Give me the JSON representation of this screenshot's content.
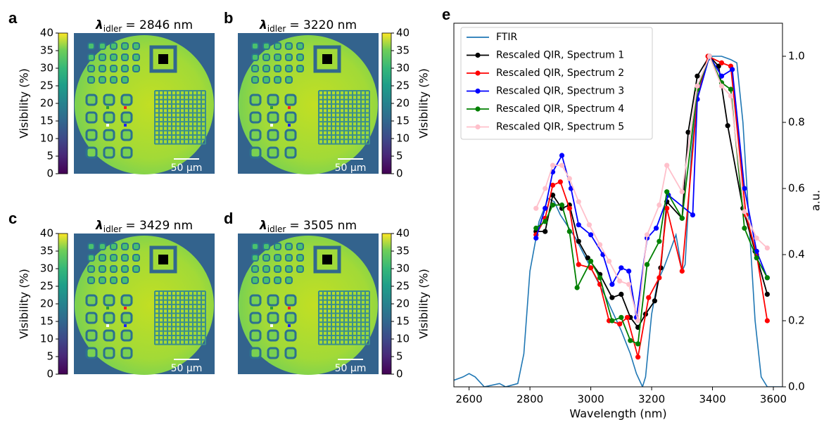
{
  "panels": [
    {
      "label": "a",
      "symbol": "λ",
      "subscript": "idler",
      "text": "= 2846 nm",
      "scalebar": "50 µm"
    },
    {
      "label": "b",
      "symbol": "λ",
      "subscript": "idler",
      "text": "= 3220 nm",
      "scalebar": "50 µm"
    },
    {
      "label": "c",
      "symbol": "λ",
      "subscript": "idler",
      "text": "= 3429 nm",
      "scalebar": "50 µm"
    },
    {
      "label": "d",
      "symbol": "λ",
      "subscript": "idler",
      "text": "= 3505 nm",
      "scalebar": "50 µm"
    }
  ],
  "colorbar": {
    "label": "Visibility (%)",
    "lim": [
      0,
      40
    ],
    "ticks": [
      0,
      5,
      10,
      15,
      20,
      25,
      30,
      35,
      40
    ]
  },
  "chart_data": {
    "type": "line",
    "panel_label": "e",
    "x_label": "Wavelength (nm)",
    "y_label": "a.u.",
    "xlim": [
      2550,
      3630
    ],
    "xticks": [
      2600,
      2800,
      3000,
      3200,
      3400,
      3600
    ],
    "ylim": [
      0,
      1.1
    ],
    "yticks": [
      {
        "value": 0,
        "label": "0.0"
      },
      0.2,
      0.4,
      0.6,
      0.8,
      {
        "value": 1,
        "label": "1.0"
      }
    ],
    "legend": "upper left",
    "series": [
      {
        "name": "FTIR",
        "color": "#1f77b4",
        "markers": false,
        "x": [
          2550,
          2580,
          2600,
          2620,
          2650,
          2700,
          2720,
          2760,
          2780,
          2800,
          2830,
          2860,
          2880,
          2900,
          2950,
          3000,
          3050,
          3100,
          3130,
          3150,
          3170,
          3180,
          3200,
          3220,
          3240,
          3260,
          3280,
          3300,
          3310,
          3330,
          3350,
          3380,
          3400,
          3430,
          3460,
          3480,
          3500,
          3520,
          3540,
          3560,
          3580,
          3630
        ],
        "values": [
          0.02,
          0.03,
          0.04,
          0.03,
          0.0,
          0.01,
          0.0,
          0.01,
          0.1,
          0.35,
          0.5,
          0.57,
          0.56,
          0.52,
          0.45,
          0.36,
          0.27,
          0.17,
          0.1,
          0.04,
          0.0,
          0.03,
          0.22,
          0.32,
          0.36,
          0.41,
          0.46,
          0.35,
          0.37,
          0.7,
          0.88,
          0.98,
          1.0,
          1.0,
          0.99,
          0.98,
          0.8,
          0.5,
          0.2,
          0.03,
          0.0,
          0.0
        ]
      },
      {
        "name": "Rescaled QIR, Spectrum 1",
        "color": "#000000",
        "markers": true,
        "x": [
          2820,
          2850,
          2875,
          2905,
          2930,
          2960,
          2990,
          3030,
          3070,
          3100,
          3130,
          3155,
          3180,
          3210,
          3230,
          3250,
          3300,
          3320,
          3350,
          3390,
          3420,
          3450,
          3500,
          3540,
          3580
        ],
        "values": [
          0.47,
          0.47,
          0.58,
          0.54,
          0.55,
          0.44,
          0.39,
          0.34,
          0.27,
          0.28,
          0.21,
          0.18,
          0.22,
          0.26,
          0.36,
          0.56,
          0.51,
          0.77,
          0.94,
          1.0,
          0.97,
          0.79,
          0.54,
          0.41,
          0.28
        ]
      },
      {
        "name": "Rescaled QIR, Spectrum 2",
        "color": "#ff0000",
        "markers": true,
        "x": [
          2820,
          2850,
          2875,
          2900,
          2930,
          2960,
          3000,
          3030,
          3060,
          3095,
          3120,
          3155,
          3190,
          3225,
          3250,
          3300,
          3350,
          3385,
          3430,
          3460,
          3510,
          3545,
          3580
        ],
        "values": [
          0.46,
          0.51,
          0.61,
          0.62,
          0.54,
          0.37,
          0.36,
          0.31,
          0.2,
          0.19,
          0.21,
          0.09,
          0.27,
          0.33,
          0.54,
          0.35,
          0.87,
          1.0,
          0.98,
          0.97,
          0.52,
          0.4,
          0.2
        ]
      },
      {
        "name": "Rescaled QIR, Spectrum 3",
        "color": "#0000ff",
        "markers": true,
        "x": [
          2820,
          2850,
          2875,
          2905,
          2935,
          2960,
          3000,
          3040,
          3070,
          3100,
          3125,
          3150,
          3185,
          3215,
          3255,
          3335,
          3350,
          3390,
          3430,
          3465,
          3505,
          3545,
          3580
        ],
        "values": [
          0.45,
          0.54,
          0.65,
          0.7,
          0.6,
          0.49,
          0.46,
          0.4,
          0.31,
          0.36,
          0.35,
          0.21,
          0.45,
          0.48,
          0.58,
          0.52,
          0.87,
          1.0,
          0.94,
          0.96,
          0.6,
          0.41,
          0.33
        ]
      },
      {
        "name": "Rescaled QIR, Spectrum 4",
        "color": "#008000",
        "markers": true,
        "x": [
          2820,
          2850,
          2875,
          2905,
          2930,
          2955,
          3000,
          3030,
          3070,
          3100,
          3130,
          3155,
          3185,
          3225,
          3250,
          3300,
          3350,
          3390,
          3430,
          3460,
          3505,
          3545,
          3580
        ],
        "values": [
          0.48,
          0.5,
          0.55,
          0.55,
          0.47,
          0.3,
          0.38,
          0.33,
          0.2,
          0.21,
          0.14,
          0.13,
          0.37,
          0.44,
          0.59,
          0.51,
          0.9,
          1.0,
          0.92,
          0.9,
          0.48,
          0.39,
          0.33
        ]
      },
      {
        "name": "Rescaled QIR, Spectrum 5",
        "color": "#ffc0cb",
        "markers": true,
        "x": [
          2820,
          2850,
          2875,
          2905,
          2930,
          2960,
          2995,
          3030,
          3060,
          3095,
          3125,
          3155,
          3185,
          3225,
          3250,
          3300,
          3350,
          3390,
          3430,
          3460,
          3505,
          3545,
          3580
        ],
        "values": [
          0.54,
          0.6,
          0.67,
          0.67,
          0.63,
          0.56,
          0.49,
          0.43,
          0.38,
          0.32,
          0.31,
          0.2,
          0.46,
          0.55,
          0.67,
          0.59,
          0.91,
          1.0,
          0.91,
          0.88,
          0.53,
          0.45,
          0.42
        ]
      }
    ]
  }
}
